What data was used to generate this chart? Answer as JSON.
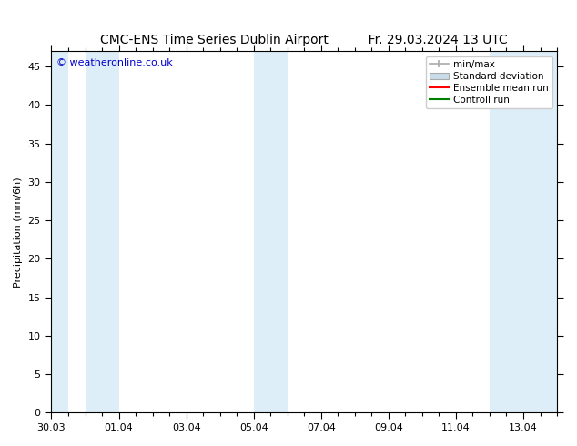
{
  "title_left": "CMC-ENS Time Series Dublin Airport",
  "title_right": "Fr. 29.03.2024 13 UTC",
  "ylabel": "Precipitation (mm/6h)",
  "copyright_text": "© weatheronline.co.uk",
  "background_color": "#ffffff",
  "plot_bg_color": "#ffffff",
  "ylim": [
    0,
    47
  ],
  "yticks": [
    0,
    5,
    10,
    15,
    20,
    25,
    30,
    35,
    40,
    45
  ],
  "xlim": [
    0,
    15.0
  ],
  "xtick_labels": [
    "30.03",
    "01.04",
    "03.04",
    "05.04",
    "07.04",
    "09.04",
    "11.04",
    "13.04"
  ],
  "xtick_positions_days": [
    0,
    2,
    4,
    6,
    8,
    10,
    12,
    14
  ],
  "shaded_ranges": [
    [
      0,
      0.5
    ],
    [
      1.0,
      2.0
    ],
    [
      6.0,
      7.0
    ],
    [
      13.0,
      15.0
    ]
  ],
  "band_color": "#ddeef8",
  "legend_labels": [
    "min/max",
    "Standard deviation",
    "Ensemble mean run",
    "Controll run"
  ],
  "legend_minmax_color": "#aaaaaa",
  "legend_std_color": "#c8dcea",
  "legend_ens_color": "#ff0000",
  "legend_ctrl_color": "#008000",
  "title_fontsize": 10,
  "axis_label_fontsize": 8,
  "tick_fontsize": 8,
  "copyright_color": "#0000cc",
  "copyright_fontsize": 8,
  "legend_fontsize": 7.5
}
